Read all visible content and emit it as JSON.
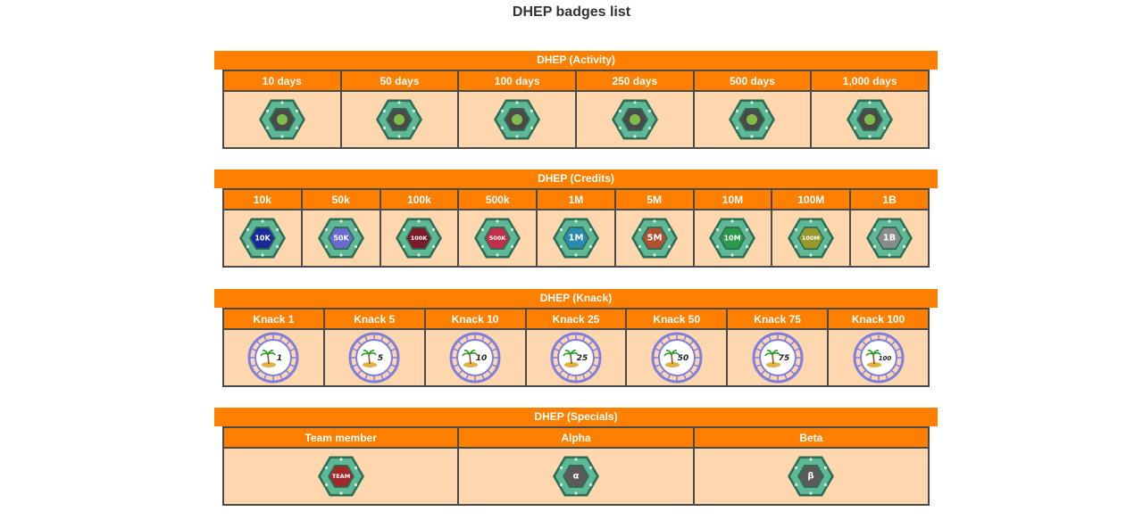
{
  "page": {
    "title": "DHEP badges list"
  },
  "colors": {
    "header": "#ff7f00",
    "cell": "#ffd7ae",
    "border": "#4a4a4a",
    "hexFrame": "#5fb895",
    "hexDark": "#2e6e55",
    "dna": "#7f7fe0"
  },
  "sections": [
    {
      "title": "DHEP (Activity)",
      "kind": "hex",
      "badges": [
        {
          "label": "10 days",
          "icon": "seedling-icon",
          "inner": "#4a4a4a",
          "mark": ""
        },
        {
          "label": "50 days",
          "icon": "fossil-icon",
          "inner": "#4a4a4a",
          "mark": ""
        },
        {
          "label": "100 days",
          "icon": "microscope-icon",
          "inner": "#4a4a4a",
          "mark": ""
        },
        {
          "label": "250 days",
          "icon": "virus-icon",
          "inner": "#4a4a4a",
          "mark": ""
        },
        {
          "label": "500 days",
          "icon": "ufo-icon",
          "inner": "#4a4a4a",
          "mark": ""
        },
        {
          "label": "1,000 days",
          "icon": "cactus-icon",
          "inner": "#4a4a4a",
          "mark": ""
        }
      ]
    },
    {
      "title": "DHEP (Credits)",
      "kind": "hex",
      "badges": [
        {
          "label": "10k",
          "icon": "credits-10k-icon",
          "inner": "#1a2a9a",
          "mark": "10K"
        },
        {
          "label": "50k",
          "icon": "credits-50k-icon",
          "inner": "#6a6ad0",
          "mark": "50K"
        },
        {
          "label": "100k",
          "icon": "credits-100k-icon",
          "inner": "#7a1a2a",
          "mark": "100K"
        },
        {
          "label": "500k",
          "icon": "credits-500k-icon",
          "inner": "#c0304a",
          "mark": "500K"
        },
        {
          "label": "1M",
          "icon": "credits-1m-icon",
          "inner": "#2a8ab0",
          "mark": "1M"
        },
        {
          "label": "5M",
          "icon": "credits-5m-icon",
          "inner": "#b05030",
          "mark": "5M"
        },
        {
          "label": "10M",
          "icon": "credits-10m-icon",
          "inner": "#2a9a4a",
          "mark": "10M"
        },
        {
          "label": "100M",
          "icon": "credits-100m-icon",
          "inner": "#9a9a2a",
          "mark": "100M"
        },
        {
          "label": "1B",
          "icon": "credits-1b-icon",
          "inner": "#8a8a8a",
          "mark": "1B"
        }
      ]
    },
    {
      "title": "DHEP (Knack)",
      "kind": "dna",
      "badges": [
        {
          "label": "Knack 1",
          "icon": "island-1-icon",
          "mark": "1"
        },
        {
          "label": "Knack 5",
          "icon": "island-5-icon",
          "mark": "5"
        },
        {
          "label": "Knack 10",
          "icon": "island-10-icon",
          "mark": "10"
        },
        {
          "label": "Knack 25",
          "icon": "island-25-icon",
          "mark": "25"
        },
        {
          "label": "Knack 50",
          "icon": "island-50-icon",
          "mark": "50"
        },
        {
          "label": "Knack 75",
          "icon": "island-75-icon",
          "mark": "75"
        },
        {
          "label": "Knack 100",
          "icon": "island-100-icon",
          "mark": "100"
        }
      ]
    },
    {
      "title": "DHEP (Specials)",
      "kind": "hex",
      "badges": [
        {
          "label": "Team member",
          "icon": "team-icon",
          "inner": "#a02a2a",
          "mark": "TEAM"
        },
        {
          "label": "Alpha",
          "icon": "alpha-icon",
          "inner": "#5a5a5a",
          "mark": "α"
        },
        {
          "label": "Beta",
          "icon": "beta-icon",
          "inner": "#5a5a5a",
          "mark": "β"
        }
      ]
    }
  ]
}
